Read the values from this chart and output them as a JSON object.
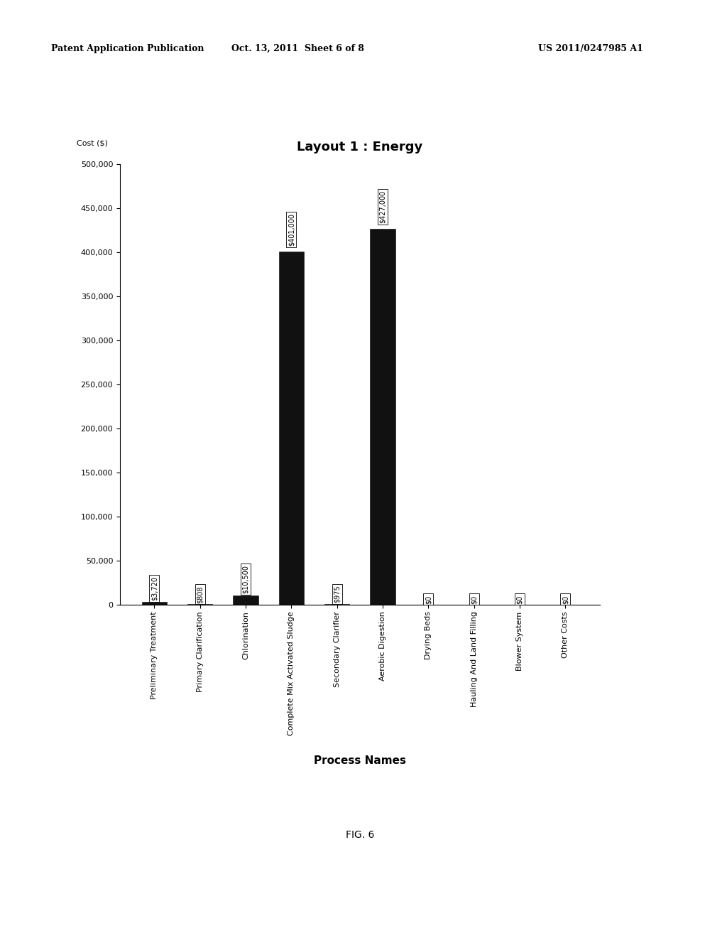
{
  "title": "Layout 1 : Energy",
  "ylabel": "Cost ($)",
  "xlabel": "Process Names",
  "fig_caption": "FIG. 6",
  "header_left": "Patent Application Publication",
  "header_center": "Oct. 13, 2011  Sheet 6 of 8",
  "header_right": "US 2011/0247985 A1",
  "categories": [
    "Preliminary Treatment",
    "Primary Clarification",
    "Chlorination",
    "Complete Mix Activated Sludge",
    "Secondary Clarifier",
    "Aerobic Digestion",
    "Drying Beds",
    "Hauling And Land Filling",
    "Blower System",
    "Other Costs"
  ],
  "values": [
    3720,
    808,
    10500,
    401000,
    975,
    427000,
    0,
    0,
    0,
    0
  ],
  "bar_labels": [
    "$3,720",
    "$808",
    "$10,500",
    "$401,000",
    "$975",
    "$427,000",
    "$0",
    "$0",
    "$0",
    "$0"
  ],
  "bar_color": "#111111",
  "background_color": "#ffffff",
  "ylim": [
    0,
    500000
  ],
  "yticks": [
    0,
    50000,
    100000,
    150000,
    200000,
    250000,
    300000,
    350000,
    400000,
    450000,
    500000
  ],
  "title_fontsize": 13,
  "ylabel_fontsize": 8,
  "xlabel_fontsize": 11,
  "tick_fontsize": 8,
  "label_fontsize": 7,
  "header_fontsize": 9,
  "caption_fontsize": 10
}
